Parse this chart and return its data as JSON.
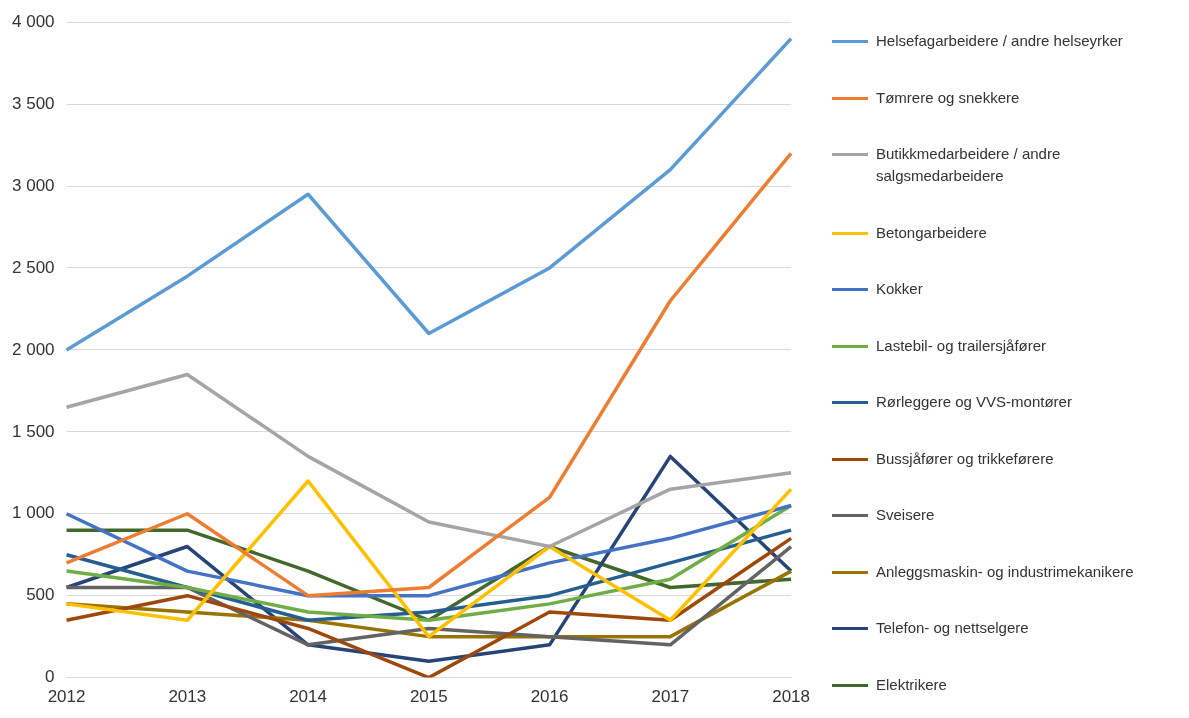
{
  "chart_data": {
    "type": "line",
    "categories": [
      "2012",
      "2013",
      "2014",
      "2015",
      "2016",
      "2017",
      "2018"
    ],
    "ylim": [
      0,
      4000
    ],
    "yticks": [
      0,
      {
        "value": 500,
        "label": "500"
      },
      {
        "value": 1000,
        "label": "1 000"
      },
      {
        "value": 1500,
        "label": "1 500"
      },
      {
        "value": 2000,
        "label": "2 000"
      },
      {
        "value": 2500,
        "label": "2 500"
      },
      {
        "value": 3000,
        "label": "3 000"
      },
      {
        "value": 3500,
        "label": "3 500"
      },
      {
        "value": 4000,
        "label": "4 000"
      }
    ],
    "grid": "y",
    "legend": "right",
    "marker": "none",
    "line_style": "solid",
    "series": [
      {
        "name": "Helsefagarbeidere / andre helseyrker",
        "color": "#5b9bd5",
        "values": [
          2000,
          2450,
          2950,
          2100,
          2500,
          3100,
          3900
        ]
      },
      {
        "name": "Tømrere og snekkere",
        "color": "#ed7d31",
        "values": [
          700,
          1000,
          500,
          550,
          1100,
          2300,
          3200
        ]
      },
      {
        "name": "Butikkmedarbeidere / andre salgsmedarbeidere",
        "color": "#a5a5a5",
        "values": [
          1650,
          1850,
          1350,
          950,
          800,
          1150,
          1250
        ]
      },
      {
        "name": "Betongarbeidere",
        "color": "#ffc000",
        "values": [
          450,
          350,
          1200,
          250,
          800,
          350,
          1150
        ]
      },
      {
        "name": "Kokker",
        "color": "#4472c4",
        "values": [
          1000,
          650,
          500,
          500,
          700,
          850,
          1050
        ]
      },
      {
        "name": "Lastebil- og trailersjåfører",
        "color": "#70ad47",
        "values": [
          650,
          550,
          400,
          350,
          450,
          600,
          1050
        ]
      },
      {
        "name": "Rørleggere og VVS-montører",
        "color": "#255e91",
        "values": [
          750,
          550,
          350,
          400,
          500,
          700,
          900
        ]
      },
      {
        "name": "Bussjåfører og trikkeførere",
        "color": "#9e480e",
        "values": [
          350,
          500,
          300,
          0,
          400,
          350,
          850
        ]
      },
      {
        "name": "Sveisere",
        "color": "#636363",
        "values": [
          550,
          550,
          200,
          300,
          250,
          200,
          800
        ]
      },
      {
        "name": "Anleggsmaskin- og industrimekanikere",
        "color": "#997300",
        "values": [
          450,
          400,
          350,
          250,
          250,
          250,
          650
        ]
      },
      {
        "name": "Telefon- og nettselgere",
        "color": "#264478",
        "values": [
          550,
          800,
          200,
          100,
          200,
          1350,
          650
        ]
      },
      {
        "name": "Elektrikere",
        "color": "#43682b",
        "values": [
          900,
          900,
          650,
          350,
          800,
          550,
          600
        ]
      }
    ]
  }
}
